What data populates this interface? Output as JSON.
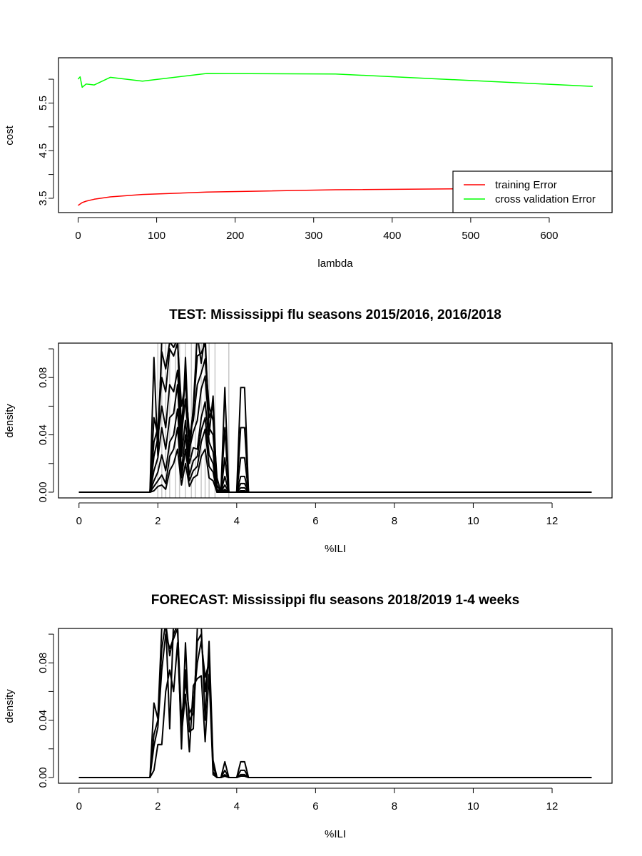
{
  "chart_data": [
    {
      "type": "line",
      "title": "",
      "xlabel": "lambda",
      "ylabel": "cost",
      "xlim": [
        -25,
        680
      ],
      "ylim": [
        3.2,
        6.45
      ],
      "xticks": [
        0,
        100,
        200,
        300,
        400,
        500,
        600
      ],
      "xtick_labels": [
        "0",
        "100",
        "200",
        "300",
        "400",
        "500",
        "600"
      ],
      "yticks": [
        3.5,
        4.5,
        5.5
      ],
      "ytick_labels": [
        "3.5",
        "4.5",
        "5.5"
      ],
      "yticks_minor": [
        3.5,
        4.0,
        4.5,
        5.0,
        5.5,
        6.0
      ],
      "grid": false,
      "legend": {
        "placement": "bottom-right",
        "entries": [
          {
            "label": "training Error",
            "color": "#ff0000"
          },
          {
            "label": "cross validation Error",
            "color": "#00ff00"
          }
        ]
      },
      "series": [
        {
          "name": "training Error",
          "color": "#ff0000",
          "x": [
            0,
            2.56,
            5.12,
            10.24,
            20.48,
            40.96,
            81.92,
            163.84,
            327.68,
            655.36
          ],
          "y": [
            3.35,
            3.38,
            3.41,
            3.44,
            3.48,
            3.53,
            3.58,
            3.63,
            3.68,
            3.72
          ]
        },
        {
          "name": "cross validation Error",
          "color": "#00ff00",
          "x": [
            0,
            2.56,
            5.12,
            10.24,
            20.48,
            40.96,
            81.92,
            163.84,
            327.68,
            655.36
          ],
          "y": [
            6.0,
            6.05,
            5.83,
            5.9,
            5.88,
            6.04,
            5.96,
            6.12,
            6.11,
            5.85
          ]
        }
      ]
    },
    {
      "type": "line",
      "title": "TEST: Mississippi  flu seasons 2015/2016, 2016/2018",
      "xlabel": "%ILI",
      "ylabel": "density",
      "xlim": [
        -0.52,
        13.52
      ],
      "ylim": [
        -0.004,
        0.104
      ],
      "xticks": [
        0,
        2,
        4,
        6,
        8,
        10,
        12
      ],
      "xtick_labels": [
        "0",
        "2",
        "4",
        "6",
        "8",
        "10",
        "12"
      ],
      "yticks": [
        0.0,
        0.04,
        0.08
      ],
      "ytick_labels": [
        "0.00",
        "0.04",
        "0.08"
      ],
      "yticks_minor": [
        0.0,
        0.02,
        0.04,
        0.06,
        0.08,
        0.1
      ],
      "grid": false,
      "vlines": {
        "color": "#c8c8c8",
        "x": [
          2.0,
          2.1,
          2.2,
          2.3,
          2.45,
          2.55,
          2.7,
          2.85,
          2.95,
          3.1,
          3.2,
          3.3,
          3.45,
          3.8
        ]
      },
      "x": [
        0,
        1.8,
        1.9,
        2.0,
        2.1,
        2.2,
        2.3,
        2.4,
        2.5,
        2.6,
        2.7,
        2.8,
        2.9,
        3.0,
        3.1,
        3.2,
        3.3,
        3.4,
        3.5,
        3.6,
        3.7,
        3.8,
        3.9,
        4.0,
        4.1,
        4.2,
        4.3,
        4.4,
        13
      ],
      "series": [
        {
          "values": [
            0,
            0,
            0.094,
            0.025,
            0.107,
            0.105,
            0.107,
            0.106,
            0.107,
            0.03,
            0.094,
            0.025,
            0.06,
            0.11,
            0.09,
            0.11,
            0.04,
            0.067,
            0,
            0,
            0.073,
            0,
            0,
            0,
            0.073,
            0.073,
            0,
            0,
            0
          ]
        },
        {
          "values": [
            0,
            0,
            0.052,
            0.04,
            0.098,
            0.086,
            0.105,
            0.101,
            0.107,
            0.045,
            0.082,
            0.035,
            0.057,
            0.095,
            0.097,
            0.104,
            0.052,
            0.06,
            0,
            0,
            0.045,
            0,
            0,
            0,
            0.045,
            0.045,
            0,
            0,
            0
          ]
        },
        {
          "values": [
            0,
            0,
            0.035,
            0.045,
            0.08,
            0.07,
            0.1,
            0.095,
            0.104,
            0.06,
            0.076,
            0.04,
            0.05,
            0.075,
            0.083,
            0.093,
            0.06,
            0.05,
            0.01,
            0,
            0.024,
            0,
            0,
            0,
            0.024,
            0.024,
            0,
            0,
            0
          ]
        },
        {
          "values": [
            0,
            0,
            0.025,
            0.038,
            0.06,
            0.045,
            0.075,
            0.07,
            0.085,
            0.04,
            0.065,
            0.03,
            0.042,
            0.05,
            0.072,
            0.081,
            0.045,
            0.04,
            0.005,
            0,
            0.011,
            0,
            0,
            0,
            0.011,
            0.011,
            0,
            0,
            0
          ]
        },
        {
          "values": [
            0,
            0,
            0.015,
            0.024,
            0.045,
            0.03,
            0.052,
            0.055,
            0.075,
            0.025,
            0.05,
            0.02,
            0.031,
            0.03,
            0.052,
            0.063,
            0.035,
            0.028,
            0.002,
            0,
            0.005,
            0,
            0,
            0,
            0.006,
            0.006,
            0,
            0,
            0
          ]
        },
        {
          "values": [
            0,
            0,
            0.008,
            0.014,
            0.026,
            0.015,
            0.035,
            0.04,
            0.058,
            0.015,
            0.04,
            0.012,
            0.022,
            0.025,
            0.043,
            0.052,
            0.026,
            0.02,
            0.001,
            0,
            0.002,
            0,
            0,
            0,
            0.003,
            0.003,
            0,
            0,
            0
          ]
        },
        {
          "values": [
            0,
            0,
            0.004,
            0.008,
            0.012,
            0.006,
            0.025,
            0.03,
            0.045,
            0.01,
            0.03,
            0.008,
            0.015,
            0.018,
            0.035,
            0.044,
            0.018,
            0.014,
            0,
            0,
            0.001,
            0,
            0,
            0,
            0.001,
            0.001,
            0,
            0,
            0
          ]
        },
        {
          "values": [
            0,
            0,
            0.001,
            0.004,
            0.005,
            0.002,
            0.015,
            0.02,
            0.03,
            0.005,
            0.02,
            0.004,
            0.01,
            0.012,
            0.025,
            0.03,
            0.01,
            0.008,
            0,
            0,
            0,
            0,
            0,
            0,
            0,
            0,
            0,
            0,
            0
          ]
        }
      ]
    },
    {
      "type": "line",
      "title": "FORECAST: Mississippi flu seasons 2018/2019 1-4 weeks",
      "xlabel": "%ILI",
      "ylabel": "density",
      "xlim": [
        -0.52,
        13.52
      ],
      "ylim": [
        -0.004,
        0.104
      ],
      "xticks": [
        0,
        2,
        4,
        6,
        8,
        10,
        12
      ],
      "xtick_labels": [
        "0",
        "2",
        "4",
        "6",
        "8",
        "10",
        "12"
      ],
      "yticks": [
        0.0,
        0.04,
        0.08
      ],
      "ytick_labels": [
        "0.00",
        "0.04",
        "0.08"
      ],
      "yticks_minor": [
        0.0,
        0.02,
        0.04,
        0.06,
        0.08,
        0.1
      ],
      "grid": false,
      "x": [
        0,
        1.8,
        1.9,
        2.0,
        2.1,
        2.2,
        2.3,
        2.4,
        2.5,
        2.6,
        2.7,
        2.8,
        2.9,
        3.0,
        3.1,
        3.2,
        3.3,
        3.4,
        3.5,
        3.6,
        3.7,
        3.8,
        3.9,
        4.0,
        4.1,
        4.2,
        4.3,
        4.4,
        13
      ],
      "series": [
        {
          "values": [
            0,
            0,
            0.052,
            0.041,
            0.105,
            0.11,
            0.034,
            0.11,
            0.105,
            0.02,
            0.094,
            0.032,
            0.034,
            0.104,
            0.106,
            0.04,
            0.095,
            0.012,
            0,
            0,
            0.011,
            0,
            0,
            0,
            0.011,
            0.011,
            0,
            0,
            0
          ]
        },
        {
          "values": [
            0,
            0,
            0.03,
            0.04,
            0.09,
            0.108,
            0.085,
            0.1,
            0.107,
            0.03,
            0.075,
            0.04,
            0.045,
            0.095,
            0.1,
            0.06,
            0.085,
            0.008,
            0,
            0,
            0.005,
            0,
            0,
            0,
            0.005,
            0.005,
            0,
            0,
            0
          ]
        },
        {
          "values": [
            0,
            0,
            0.022,
            0.035,
            0.075,
            0.1,
            0.09,
            0.097,
            0.104,
            0.04,
            0.067,
            0.045,
            0.05,
            0.08,
            0.095,
            0.07,
            0.08,
            0.004,
            0,
            0,
            0.002,
            0,
            0,
            0,
            0.002,
            0.002,
            0,
            0,
            0
          ]
        },
        {
          "values": [
            0,
            0,
            0.005,
            0.023,
            0.023,
            0.06,
            0.075,
            0.06,
            0.094,
            0.03,
            0.058,
            0.018,
            0.064,
            0.069,
            0.071,
            0.025,
            0.072,
            0.002,
            0,
            0,
            0.001,
            0,
            0,
            0,
            0.001,
            0.001,
            0,
            0,
            0
          ]
        }
      ]
    }
  ]
}
